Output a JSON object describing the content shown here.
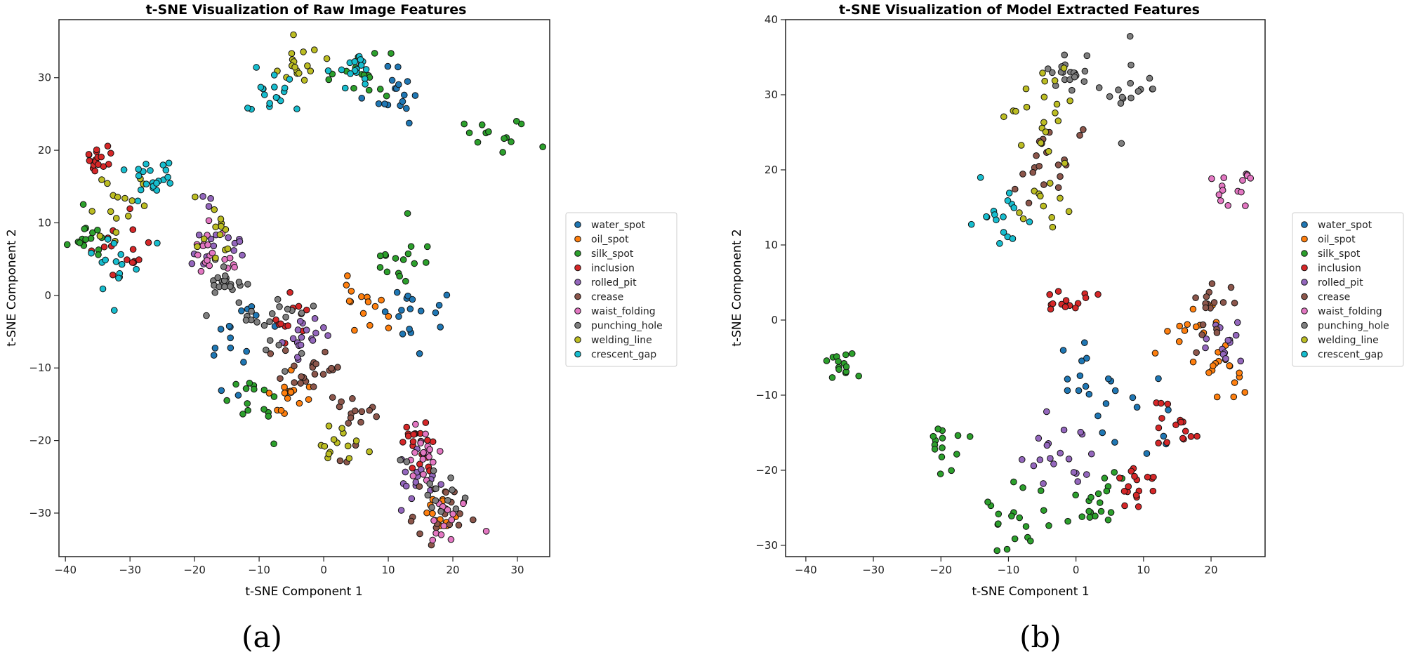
{
  "chart_data": [
    {
      "type": "scatter",
      "title": "t-SNE Visualization of Raw Image Features",
      "xlabel": "t-SNE Component 1",
      "ylabel": "t-SNE Component 2",
      "xlim": [
        -41,
        35
      ],
      "ylim": [
        -36,
        38
      ],
      "xticks": [
        -40,
        -30,
        -20,
        -10,
        0,
        10,
        20,
        30
      ],
      "yticks": [
        -30,
        -20,
        -10,
        0,
        10,
        20,
        30
      ],
      "legend_position": "right",
      "caption": "(a)",
      "series_names": [
        "water_spot",
        "oil_spot",
        "silk_spot",
        "inclusion",
        "rolled_pit",
        "crease",
        "waist_folding",
        "punching_hole",
        "welding_line",
        "crescent_gap"
      ],
      "cluster_centers": {
        "water_spot": [
          [
            15,
            -3
          ],
          [
            11,
            28
          ],
          [
            -13,
            -7
          ]
        ],
        "oil_spot": [
          [
            -5,
            -14
          ],
          [
            18,
            -30
          ],
          [
            7,
            -1
          ]
        ],
        "silk_spot": [
          [
            28,
            21
          ],
          [
            6,
            30
          ],
          [
            -36,
            8
          ],
          [
            13,
            4
          ],
          [
            -10,
            -15
          ]
        ],
        "inclusion": [
          [
            -35,
            19
          ],
          [
            -30,
            7
          ],
          [
            -5,
            -4
          ],
          [
            14,
            -20
          ]
        ],
        "rolled_pit": [
          [
            15,
            -25
          ],
          [
            -16,
            8
          ],
          [
            -3,
            -6
          ]
        ],
        "crease": [
          [
            5,
            -16
          ],
          [
            -2,
            -10
          ],
          [
            18,
            -30
          ]
        ],
        "waist_folding": [
          [
            15,
            -22
          ],
          [
            20,
            -31
          ],
          [
            -16,
            6
          ]
        ],
        "punching_hole": [
          [
            -8,
            -3
          ],
          [
            17,
            -28
          ],
          [
            -15,
            2
          ]
        ],
        "welding_line": [
          [
            -17,
            9
          ],
          [
            -32,
            13
          ],
          [
            2,
            -20
          ],
          [
            -4,
            32
          ]
        ],
        "crescent_gap": [
          [
            5,
            31
          ],
          [
            -27,
            16
          ],
          [
            -32,
            5
          ],
          [
            -8,
            28
          ]
        ]
      }
    },
    {
      "type": "scatter",
      "title": "t-SNE Visualization of Model Extracted Features",
      "xlabel": "t-SNE Component 1",
      "ylabel": "t-SNE Component 2",
      "xlim": [
        -43,
        28
      ],
      "ylim": [
        -31.5,
        40
      ],
      "xticks": [
        -40,
        -30,
        -20,
        -10,
        0,
        10,
        20
      ],
      "yticks": [
        -30,
        -20,
        -10,
        0,
        10,
        20,
        30,
        40
      ],
      "legend_position": "right",
      "caption": "(b)",
      "series_names": [
        "water_spot",
        "oil_spot",
        "silk_spot",
        "inclusion",
        "rolled_pit",
        "crease",
        "waist_folding",
        "punching_hole",
        "welding_line",
        "crescent_gap"
      ],
      "cluster_centers": {
        "water_spot": [
          [
            1,
            -7
          ],
          [
            9,
            -14
          ]
        ],
        "oil_spot": [
          [
            22,
            -7
          ],
          [
            17,
            -2
          ]
        ],
        "silk_spot": [
          [
            -35,
            -6
          ],
          [
            -19,
            -17
          ],
          [
            -8,
            -26
          ],
          [
            3,
            -24
          ]
        ],
        "inclusion": [
          [
            -1,
            3
          ],
          [
            9,
            -22
          ],
          [
            15,
            -13
          ]
        ],
        "rolled_pit": [
          [
            -3,
            -18
          ],
          [
            22,
            -2
          ]
        ],
        "crease": [
          [
            -5,
            21
          ],
          [
            20,
            2
          ]
        ],
        "waist_folding": [
          [
            23,
            18
          ]
        ],
        "punching_hole": [
          [
            7,
            30
          ],
          [
            -1,
            33
          ]
        ],
        "welding_line": [
          [
            -5,
            29
          ],
          [
            -5,
            17
          ]
        ],
        "crescent_gap": [
          [
            -11,
            13
          ]
        ]
      }
    }
  ],
  "legend": {
    "items": [
      {
        "label": "water_spot",
        "color": "#1f77b4"
      },
      {
        "label": "oil_spot",
        "color": "#ff7f0e"
      },
      {
        "label": "silk_spot",
        "color": "#2ca02c"
      },
      {
        "label": "inclusion",
        "color": "#d62728"
      },
      {
        "label": "rolled_pit",
        "color": "#9467bd"
      },
      {
        "label": "crease",
        "color": "#8c564b"
      },
      {
        "label": "waist_folding",
        "color": "#e377c2"
      },
      {
        "label": "punching_hole",
        "color": "#7f7f7f"
      },
      {
        "label": "welding_line",
        "color": "#bcbd22"
      },
      {
        "label": "crescent_gap",
        "color": "#17becf"
      }
    ]
  }
}
